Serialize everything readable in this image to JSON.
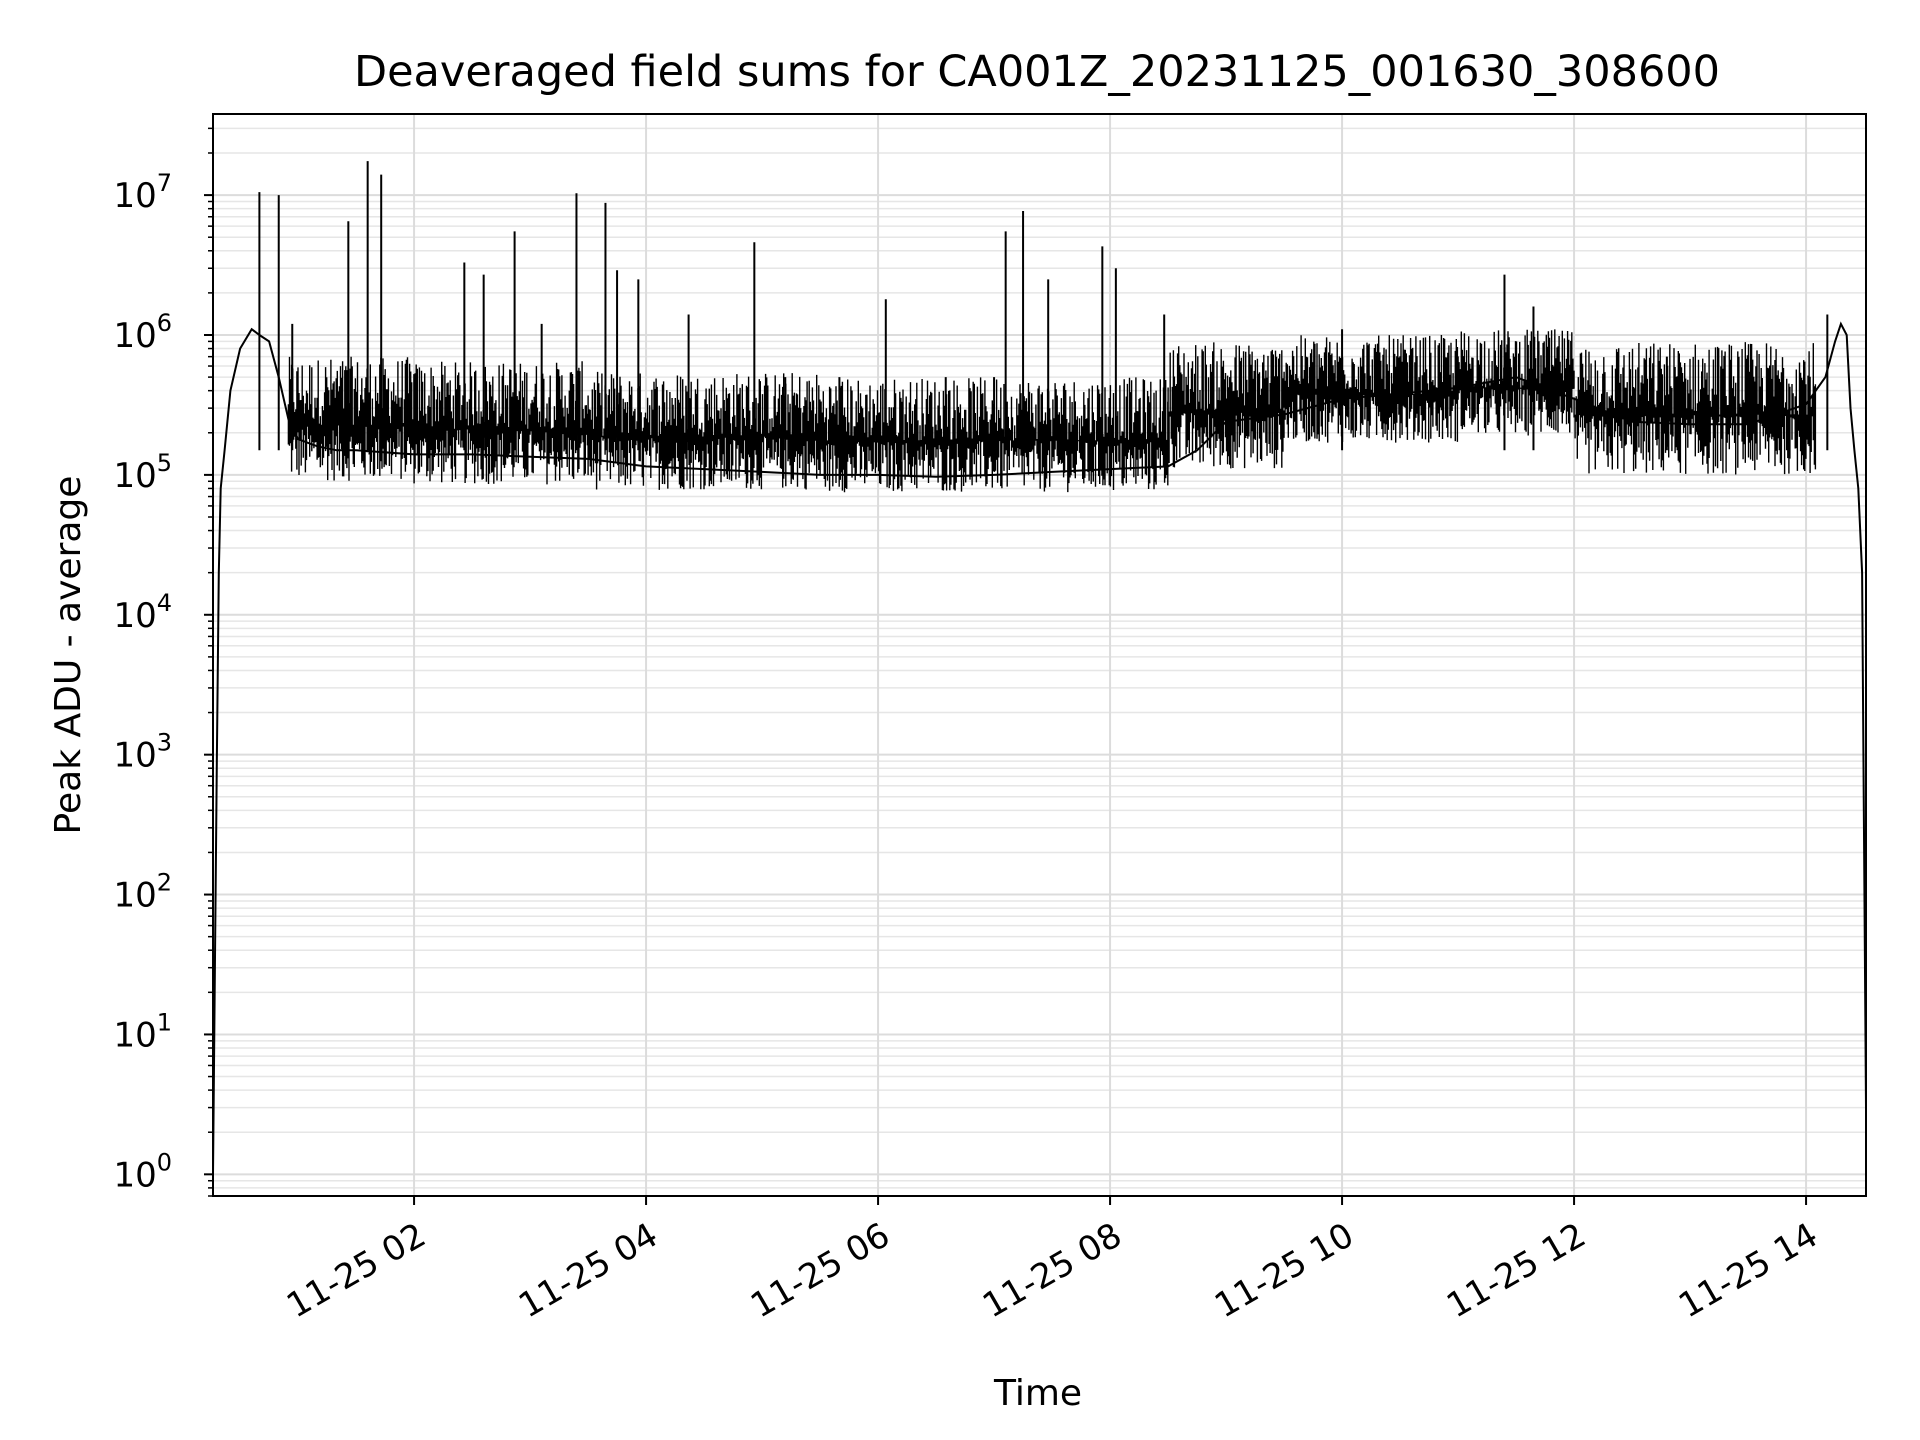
{
  "chart_data": {
    "type": "line",
    "title": "Deaveraged field sums for CA001Z_20231125_001630_308600",
    "xlabel": "Time",
    "ylabel": "Peak ADU - average",
    "yscale": "log",
    "ylim": [
      0.7,
      38000000
    ],
    "xlim": [
      "2023-11-25 00:16",
      "2023-11-25 14:31"
    ],
    "grid": true,
    "grid_minor": true,
    "line_color": "#000000",
    "x_ticks": [
      {
        "value": "2023-11-25 02:00",
        "label": "11-25 02"
      },
      {
        "value": "2023-11-25 04:00",
        "label": "11-25 04"
      },
      {
        "value": "2023-11-25 06:00",
        "label": "11-25 06"
      },
      {
        "value": "2023-11-25 08:00",
        "label": "11-25 08"
      },
      {
        "value": "2023-11-25 10:00",
        "label": "11-25 10"
      },
      {
        "value": "2023-11-25 12:00",
        "label": "11-25 12"
      },
      {
        "value": "2023-11-25 14:00",
        "label": "11-25 14"
      }
    ],
    "y_ticks": [
      {
        "value": 1,
        "base": "10",
        "exp": "0"
      },
      {
        "value": 10,
        "base": "10",
        "exp": "1"
      },
      {
        "value": 100,
        "base": "10",
        "exp": "2"
      },
      {
        "value": 1000,
        "base": "10",
        "exp": "3"
      },
      {
        "value": 10000,
        "base": "10",
        "exp": "4"
      },
      {
        "value": 100000,
        "base": "10",
        "exp": "5"
      },
      {
        "value": 1000000,
        "base": "10",
        "exp": "6"
      },
      {
        "value": 10000000,
        "base": "10",
        "exp": "7"
      }
    ],
    "series": [
      {
        "color": "#000000",
        "x": [
          "2023-11-25 00:16",
          "2023-11-25 00:17",
          "2023-11-25 00:18",
          "2023-11-25 00:19",
          "2023-11-25 00:20",
          "2023-11-25 00:22",
          "2023-11-25 00:25",
          "2023-11-25 00:30",
          "2023-11-25 00:36",
          "2023-11-25 00:40",
          "2023-11-25 00:45",
          "2023-11-25 00:50",
          "2023-11-25 00:55",
          "2023-11-25 01:00",
          "2023-11-25 01:10",
          "2023-11-25 01:20",
          "2023-11-25 01:30",
          "2023-11-25 02:00",
          "2023-11-25 02:30",
          "2023-11-25 03:00",
          "2023-11-25 03:30",
          "2023-11-25 04:00",
          "2023-11-25 04:30",
          "2023-11-25 05:00",
          "2023-11-25 05:30",
          "2023-11-25 06:00",
          "2023-11-25 06:30",
          "2023-11-25 07:00",
          "2023-11-25 07:30",
          "2023-11-25 08:00",
          "2023-11-25 08:30",
          "2023-11-25 08:45",
          "2023-11-25 09:00",
          "2023-11-25 09:30",
          "2023-11-25 10:00",
          "2023-11-25 10:30",
          "2023-11-25 11:00",
          "2023-11-25 11:30",
          "2023-11-25 12:00",
          "2023-11-25 12:30",
          "2023-11-25 13:00",
          "2023-11-25 13:30",
          "2023-11-25 14:00",
          "2023-11-25 14:10",
          "2023-11-25 14:15",
          "2023-11-25 14:18",
          "2023-11-25 14:21",
          "2023-11-25 14:23",
          "2023-11-25 14:25",
          "2023-11-25 14:27",
          "2023-11-25 14:29",
          "2023-11-25 14:31"
        ],
        "y": [
          1,
          30,
          1000,
          20000,
          80000,
          150000,
          400000,
          800000,
          1100000,
          1000000,
          900000,
          500000,
          250000,
          180000,
          160000,
          150000,
          150000,
          140000,
          140000,
          135000,
          130000,
          115000,
          110000,
          105000,
          100000,
          100000,
          97000,
          100000,
          105000,
          110000,
          115000,
          150000,
          240000,
          270000,
          350000,
          380000,
          420000,
          500000,
          350000,
          240000,
          230000,
          230000,
          320000,
          500000,
          900000,
          1200000,
          1000000,
          300000,
          150000,
          80000,
          20000,
          3
        ]
      }
    ],
    "spikes": [
      {
        "x": "2023-11-25 00:40",
        "y": 10500000
      },
      {
        "x": "2023-11-25 00:50",
        "y": 10000000
      },
      {
        "x": "2023-11-25 00:57",
        "y": 1200000
      },
      {
        "x": "2023-11-25 01:26",
        "y": 6500000
      },
      {
        "x": "2023-11-25 01:36",
        "y": 17500000
      },
      {
        "x": "2023-11-25 01:43",
        "y": 14000000
      },
      {
        "x": "2023-11-25 02:26",
        "y": 3300000
      },
      {
        "x": "2023-11-25 02:36",
        "y": 2700000
      },
      {
        "x": "2023-11-25 02:52",
        "y": 5500000
      },
      {
        "x": "2023-11-25 03:06",
        "y": 1200000
      },
      {
        "x": "2023-11-25 03:24",
        "y": 10300000
      },
      {
        "x": "2023-11-25 03:39",
        "y": 8800000
      },
      {
        "x": "2023-11-25 03:45",
        "y": 2900000
      },
      {
        "x": "2023-11-25 03:56",
        "y": 2500000
      },
      {
        "x": "2023-11-25 04:22",
        "y": 1400000
      },
      {
        "x": "2023-11-25 04:56",
        "y": 4600000
      },
      {
        "x": "2023-11-25 05:12",
        "y": 500000
      },
      {
        "x": "2023-11-25 05:40",
        "y": 500000
      },
      {
        "x": "2023-11-25 06:04",
        "y": 1800000
      },
      {
        "x": "2023-11-25 06:35",
        "y": 500000
      },
      {
        "x": "2023-11-25 07:00",
        "y": 500000
      },
      {
        "x": "2023-11-25 07:06",
        "y": 5500000
      },
      {
        "x": "2023-11-25 07:15",
        "y": 7700000
      },
      {
        "x": "2023-11-25 07:28",
        "y": 2500000
      },
      {
        "x": "2023-11-25 07:56",
        "y": 4300000
      },
      {
        "x": "2023-11-25 08:03",
        "y": 3000000
      },
      {
        "x": "2023-11-25 08:28",
        "y": 1400000
      },
      {
        "x": "2023-11-25 10:00",
        "y": 1100000
      },
      {
        "x": "2023-11-25 11:24",
        "y": 2700000
      },
      {
        "x": "2023-11-25 11:39",
        "y": 1600000
      },
      {
        "x": "2023-11-25 12:48",
        "y": 700000
      },
      {
        "x": "2023-11-25 14:11",
        "y": 1400000
      }
    ],
    "noise_band": [
      {
        "x0": "2023-11-25 00:55",
        "x1": "2023-11-25 02:00",
        "low": 90000,
        "high": 700000
      },
      {
        "x0": "2023-11-25 02:00",
        "x1": "2023-11-25 03:30",
        "low": 85000,
        "high": 650000
      },
      {
        "x0": "2023-11-25 03:30",
        "x1": "2023-11-25 05:30",
        "low": 78000,
        "high": 550000
      },
      {
        "x0": "2023-11-25 05:30",
        "x1": "2023-11-25 08:30",
        "low": 75000,
        "high": 500000
      },
      {
        "x0": "2023-11-25 08:30",
        "x1": "2023-11-25 09:30",
        "low": 110000,
        "high": 900000
      },
      {
        "x0": "2023-11-25 09:30",
        "x1": "2023-11-25 11:00",
        "low": 170000,
        "high": 1000000
      },
      {
        "x0": "2023-11-25 11:00",
        "x1": "2023-11-25 12:00",
        "low": 190000,
        "high": 1100000
      },
      {
        "x0": "2023-11-25 12:00",
        "x1": "2023-11-25 14:05",
        "low": 100000,
        "high": 900000
      }
    ]
  }
}
